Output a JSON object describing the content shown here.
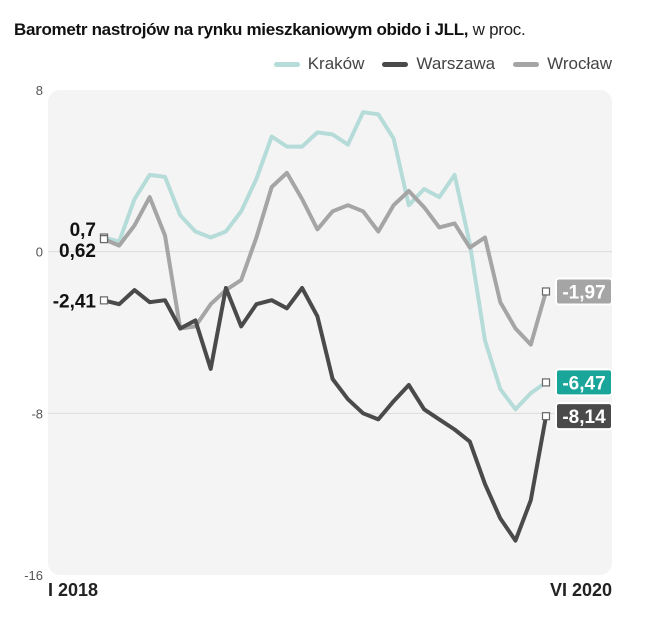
{
  "title": {
    "bold": "Barometr nastrojów na rynku mieszkaniowym obido i JLL,",
    "unit": "w proc."
  },
  "colors": {
    "krakow": "#b5dcd9",
    "warszawa": "#4a4a4a",
    "wroclaw": "#a5a5a5",
    "krakow_label_bg": "#1aa59a",
    "plot_bg": "#f4f4f4"
  },
  "chart_data": {
    "type": "line",
    "title": "Barometr nastrojów na rynku mieszkaniowym obido i JLL, w proc.",
    "ylim": [
      -16,
      8
    ],
    "y_ticks": [
      "8",
      "0",
      "-8",
      "-16"
    ],
    "x_ticks": [
      "I 2018",
      "VI 2020"
    ],
    "legend_position": "top-right",
    "grid": true,
    "series": [
      {
        "name": "Kraków",
        "key": "krakow",
        "values": [
          0.7,
          0.5,
          2.6,
          3.8,
          3.7,
          1.8,
          1.0,
          0.7,
          1.0,
          2.0,
          3.6,
          5.7,
          5.2,
          5.2,
          5.9,
          5.8,
          5.3,
          6.9,
          6.8,
          5.6,
          2.3,
          3.1,
          2.7,
          3.8,
          0.4,
          -4.4,
          -6.8,
          -7.8,
          -7.0,
          -6.47
        ],
        "start_label": "0,7",
        "end_label": "-6,47"
      },
      {
        "name": "Warszawa",
        "key": "warszawa",
        "values": [
          -2.41,
          -2.6,
          -1.9,
          -2.5,
          -2.4,
          -3.8,
          -3.4,
          -5.8,
          -1.8,
          -3.7,
          -2.6,
          -2.4,
          -2.8,
          -1.8,
          -3.2,
          -6.3,
          -7.3,
          -8.0,
          -8.3,
          -7.4,
          -6.6,
          -7.8,
          -8.3,
          -8.8,
          -9.4,
          -11.5,
          -13.2,
          -14.3,
          -12.3,
          -8.14
        ],
        "start_label": "-2,41",
        "end_label": "-8,14"
      },
      {
        "name": "Wrocław",
        "key": "wroclaw",
        "values": [
          0.62,
          0.3,
          1.3,
          2.7,
          0.8,
          -3.8,
          -3.7,
          -2.6,
          -1.9,
          -1.4,
          0.7,
          3.2,
          3.9,
          2.6,
          1.1,
          2.0,
          2.3,
          2.0,
          1.0,
          2.3,
          3.0,
          2.2,
          1.2,
          1.4,
          0.2,
          0.7,
          -2.5,
          -3.8,
          -4.6,
          -1.97
        ],
        "start_label": "0,62",
        "end_label": "-1,97"
      }
    ]
  }
}
